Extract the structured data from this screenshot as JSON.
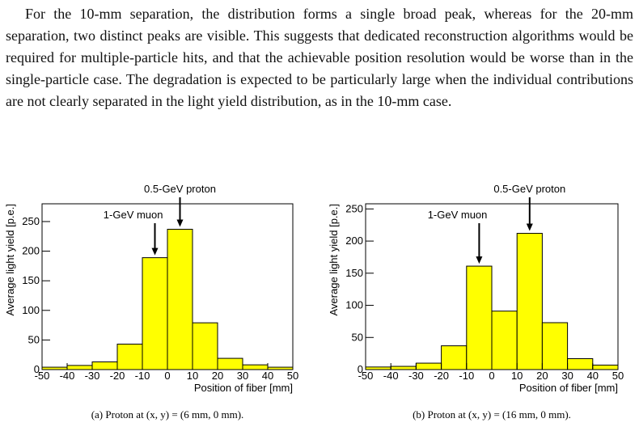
{
  "paragraph": "For the 10-mm separation, the distribution forms a single broad peak, whereas for the 20-mm separation, two distinct peaks are visible. This suggests that dedicated reconstruction algorithms would be required for multiple-particle hits, and that the achievable position resolution would be worse than in the single-particle case. The degradation is expected to be particularly large when the individual contributions are not clearly separated in the light yield distribution, as in the 10-mm case.",
  "chart_data": [
    {
      "type": "histogram",
      "bins": [
        -50,
        -40,
        -30,
        -20,
        -10,
        0,
        10,
        20,
        30,
        40,
        50
      ],
      "values": [
        4,
        7,
        13,
        43,
        189,
        237,
        79,
        19,
        8,
        4
      ],
      "color": "#ffff00",
      "xlim": [
        -50,
        50
      ],
      "ylim": [
        0,
        280
      ],
      "xticks": [
        -50,
        -40,
        -30,
        -20,
        -10,
        0,
        10,
        20,
        30,
        40,
        50
      ],
      "yticks": [
        0,
        50,
        100,
        150,
        200,
        250
      ],
      "xlabel": "Position of fiber [mm]",
      "ylabel": "Average light yield [p.e.]",
      "annotations": [
        {
          "text": "1-GeV muon",
          "x": -5
        },
        {
          "text": "0.5-GeV proton",
          "x": 5
        }
      ],
      "caption": "(a) Proton at (x, y) = (6 mm, 0 mm)."
    },
    {
      "type": "histogram",
      "bins": [
        -50,
        -40,
        -30,
        -20,
        -10,
        0,
        10,
        20,
        30,
        40,
        50
      ],
      "values": [
        4,
        5,
        10,
        37,
        161,
        91,
        212,
        73,
        17,
        7
      ],
      "color": "#ffff00",
      "xlim": [
        -50,
        50
      ],
      "ylim": [
        0,
        258
      ],
      "xticks": [
        -50,
        -40,
        -30,
        -20,
        -10,
        0,
        10,
        20,
        30,
        40,
        50
      ],
      "yticks": [
        0,
        50,
        100,
        150,
        200,
        250
      ],
      "xlabel": "Position of fiber [mm]",
      "ylabel": "Average light yield [p.e.]",
      "annotations": [
        {
          "text": "1-GeV muon",
          "x": -5
        },
        {
          "text": "0.5-GeV proton",
          "x": 15
        }
      ],
      "caption": "(b) Proton at (x, y) = (16 mm, 0 mm)."
    }
  ]
}
